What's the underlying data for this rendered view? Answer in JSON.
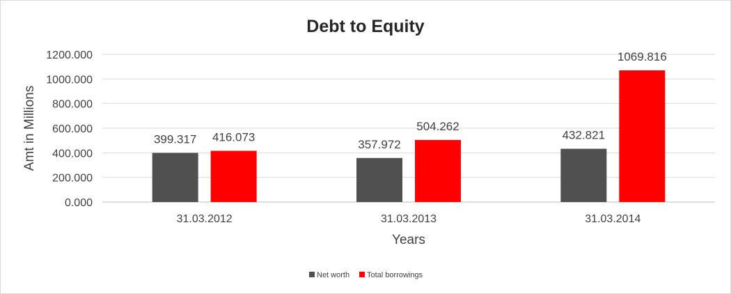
{
  "chart_data": {
    "type": "bar",
    "title": "Debt to Equity",
    "xlabel": "Years",
    "ylabel": "Amt in Millions",
    "categories": [
      "31.03.2012",
      "31.03.2013",
      "31.03.2014"
    ],
    "series": [
      {
        "name": "Net worth",
        "color": "#505050",
        "values": [
          399.317,
          357.972,
          432.821
        ],
        "labels": [
          "399.317",
          "357.972",
          "432.821"
        ]
      },
      {
        "name": "Total borrowings",
        "color": "#ff0000",
        "values": [
          416.073,
          504.262,
          1069.816
        ],
        "labels": [
          "416.073",
          "504.262",
          "1069.816"
        ]
      }
    ],
    "ylim": [
      0,
      1200
    ],
    "yticks": [
      0,
      200,
      400,
      600,
      800,
      1000,
      1200
    ],
    "ytick_labels": [
      "0.000",
      "200.000",
      "400.000",
      "600.000",
      "800.000",
      "1000.000",
      "1200.000"
    ],
    "grid": true,
    "legend": "bottom"
  }
}
